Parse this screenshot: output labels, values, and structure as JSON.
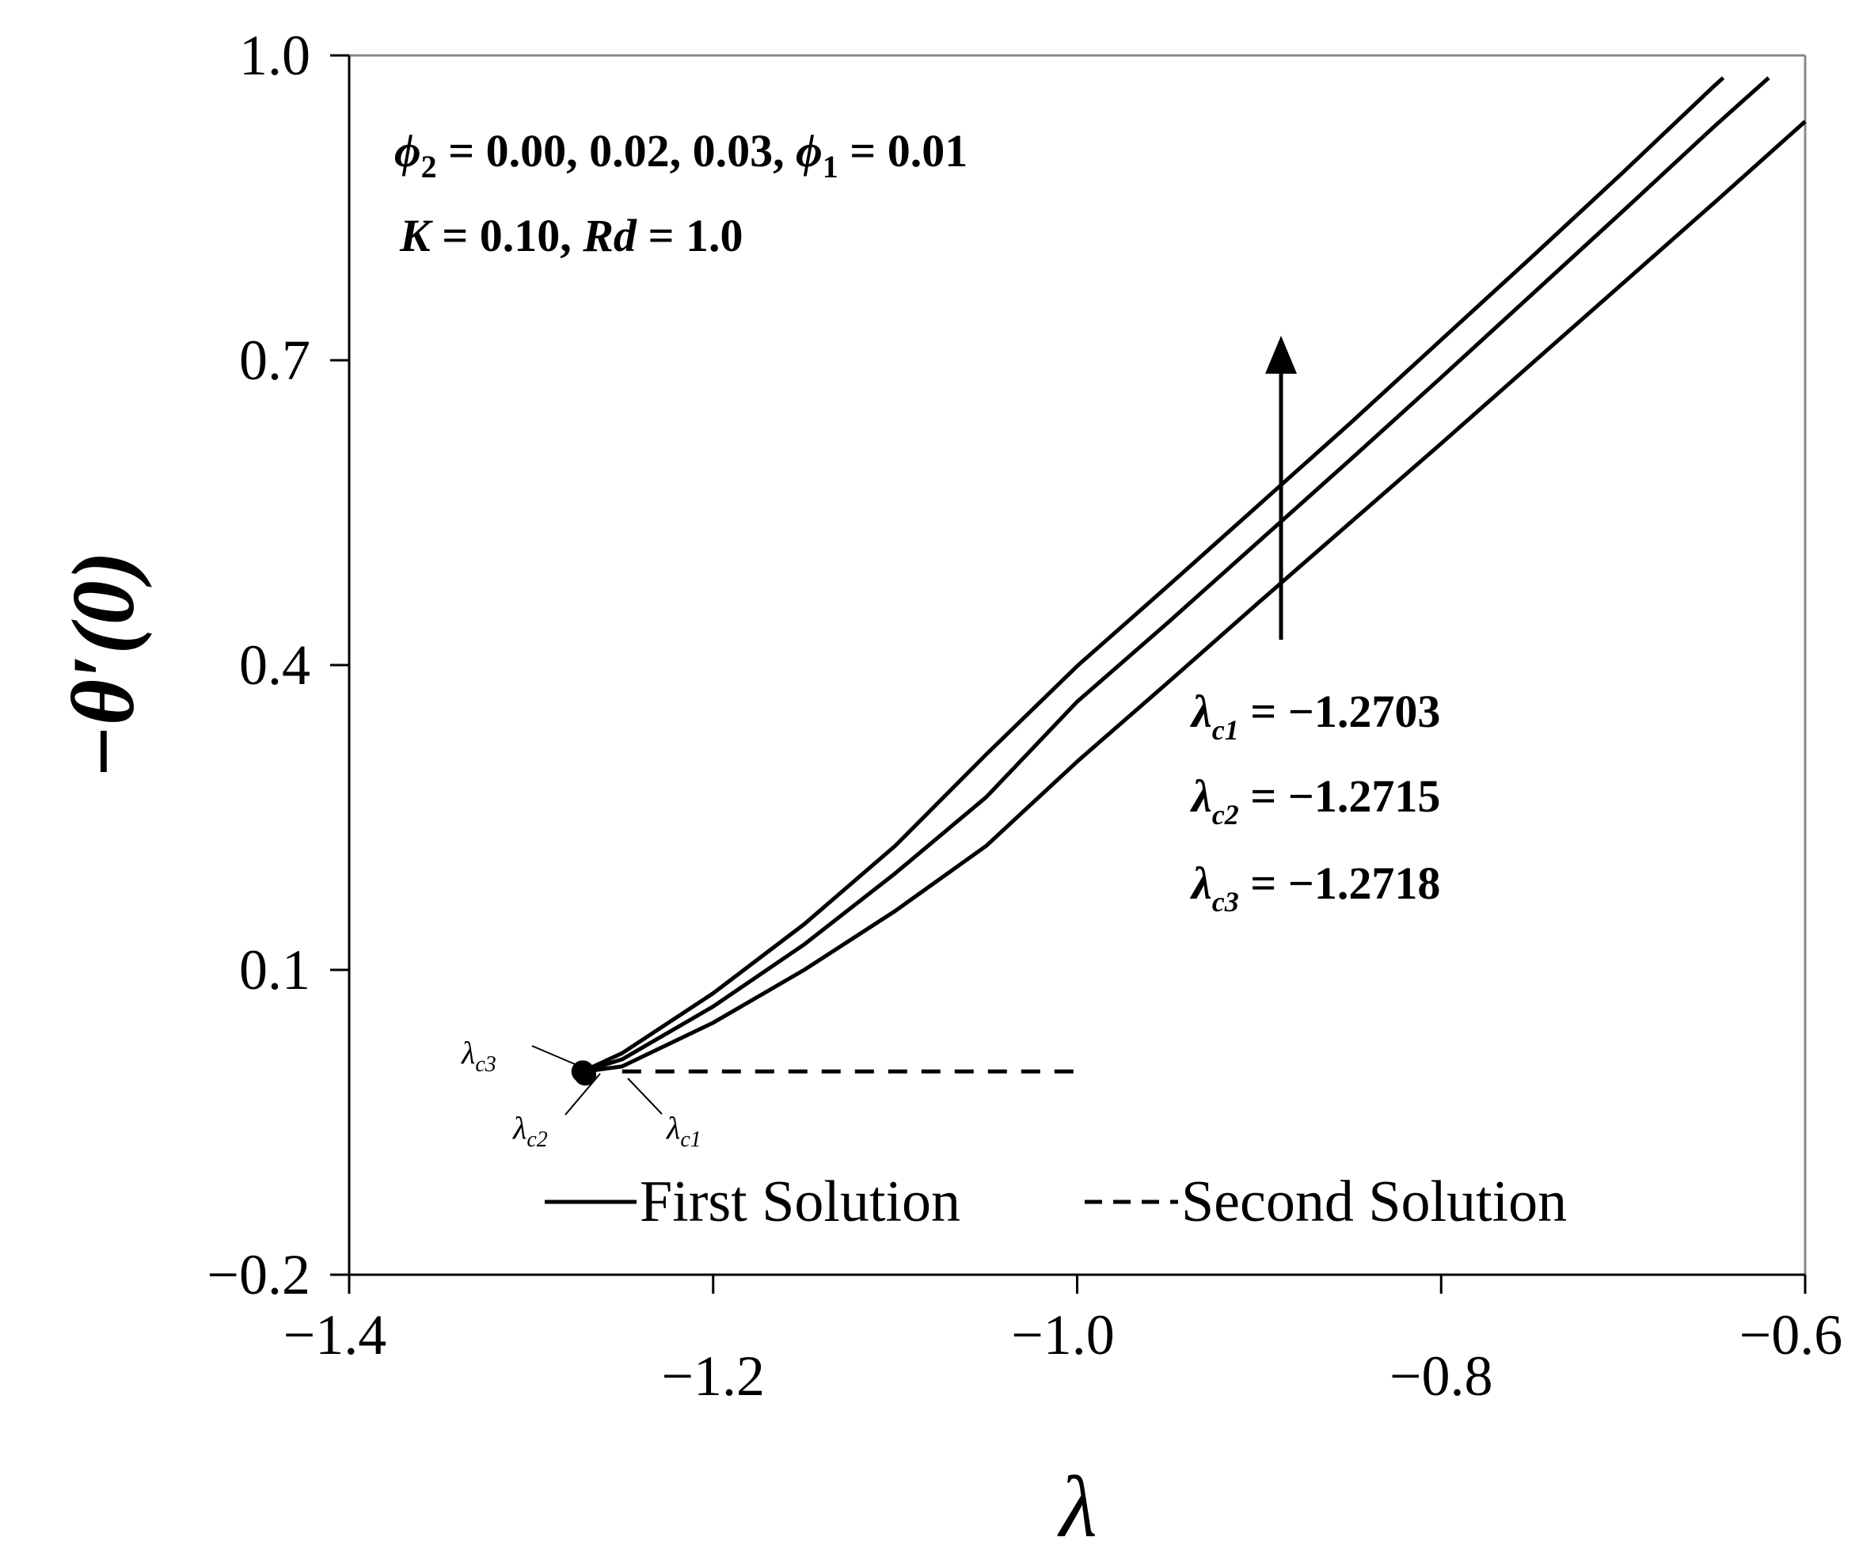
{
  "chart_data": {
    "type": "line",
    "xlabel": "λ",
    "ylabel": "−θ′(0)",
    "xlim": [
      -1.4,
      -0.6
    ],
    "ylim": [
      -0.2,
      1.0
    ],
    "xticks": [
      -1.4,
      -1.2,
      -1.0,
      -0.8,
      -0.6
    ],
    "xtick_labels": [
      "−1.4",
      "−1.2",
      "−1.0",
      "−0.8",
      "−0.6"
    ],
    "yticks": [
      -0.2,
      0.1,
      0.4,
      0.7,
      1.0
    ],
    "ytick_labels": [
      "−0.2",
      "0.1",
      "0.4",
      "0.7",
      "1.0"
    ],
    "grid": false,
    "legend_position": "bottom",
    "legend": [
      "First Solution",
      "Second Solution"
    ],
    "series": [
      {
        "name": "First Solution",
        "style": "solid",
        "x": [
          -1.2703,
          -1.25,
          -1.2,
          -1.15,
          -1.1,
          -1.05,
          -1.0,
          -0.95,
          -0.9,
          -0.85,
          -0.8,
          -0.75,
          -0.7,
          -0.65,
          -0.6
        ],
        "y": [
          0.0,
          0.005,
          0.048,
          0.1,
          0.158,
          0.222,
          0.305,
          0.383,
          0.462,
          0.54,
          0.618,
          0.697,
          0.776,
          0.855,
          0.935
        ]
      },
      {
        "name": "",
        "style": "solid",
        "x": [
          -1.2715,
          -1.25,
          -1.2,
          -1.15,
          -1.1,
          -1.05,
          -1.0,
          -0.95,
          -0.9,
          -0.85,
          -0.8,
          -0.75,
          -0.7,
          -0.65,
          -0.62
        ],
        "y": [
          0.0,
          0.012,
          0.064,
          0.125,
          0.195,
          0.27,
          0.364,
          0.442,
          0.522,
          0.602,
          0.683,
          0.765,
          0.847,
          0.93,
          0.978
        ]
      },
      {
        "name": "",
        "style": "solid",
        "x": [
          -1.2718,
          -1.25,
          -1.2,
          -1.15,
          -1.1,
          -1.05,
          -1.0,
          -0.95,
          -0.9,
          -0.85,
          -0.8,
          -0.75,
          -0.7,
          -0.65,
          -0.645
        ],
        "y": [
          0.0,
          0.018,
          0.077,
          0.145,
          0.222,
          0.312,
          0.399,
          0.478,
          0.558,
          0.638,
          0.72,
          0.802,
          0.885,
          0.97,
          0.978
        ]
      },
      {
        "name": "Second Solution",
        "style": "dashed",
        "x": [
          -1.25,
          -1.0
        ],
        "y": [
          0.0,
          0.0
        ]
      }
    ],
    "critical_points": [
      {
        "label": "λc1",
        "x": -1.2703,
        "y": -0.003
      },
      {
        "label": "λc2",
        "x": -1.2715,
        "y": 0.0
      },
      {
        "label": "λc3",
        "x": -1.2718,
        "y": 0.0
      }
    ],
    "annotations": {
      "params_line1_parts": [
        "ϕ",
        "2",
        " = 0.00,  0.02,  0.03,  ",
        "ϕ",
        "1",
        " = 0.01"
      ],
      "params_line2_parts": [
        "K",
        " = 0.10,  ",
        "Rd",
        " = 1.0"
      ],
      "crit_values": [
        {
          "sym": "λ",
          "sub": "c1",
          "value": " = −1.2703"
        },
        {
          "sym": "λ",
          "sub": "c2",
          "value": " = −1.2715"
        },
        {
          "sym": "λ",
          "sub": "c3",
          "value": " = −1.2718"
        }
      ],
      "point_labels": [
        {
          "sym": "λ",
          "sub": "c3"
        },
        {
          "sym": "λ",
          "sub": "c2"
        },
        {
          "sym": "λ",
          "sub": "c1"
        }
      ],
      "arrow": "up"
    }
  }
}
